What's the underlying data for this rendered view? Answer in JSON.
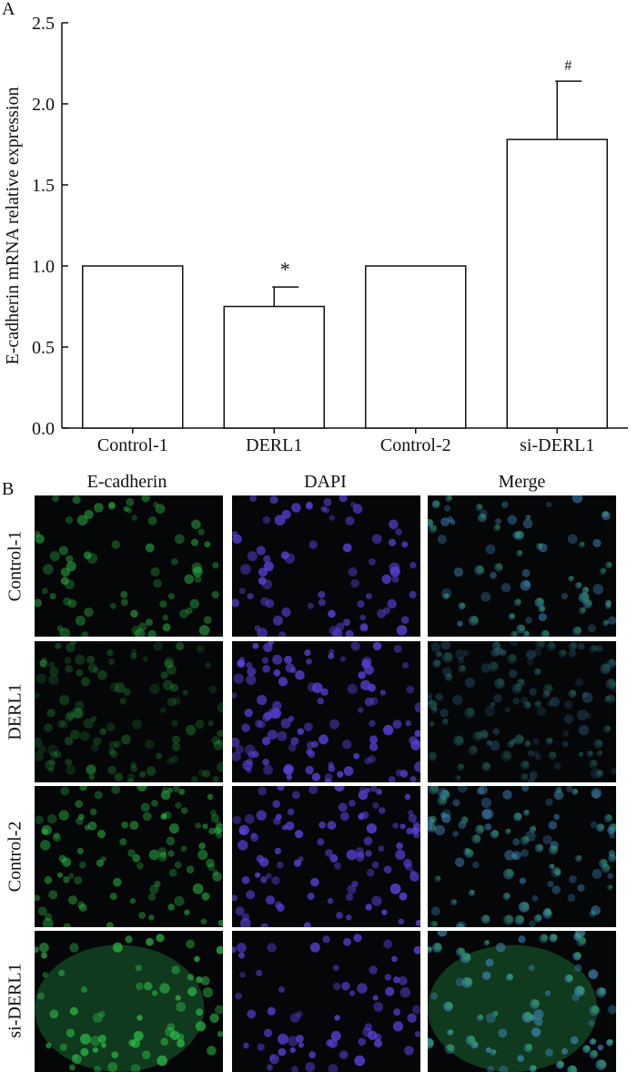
{
  "panel_a": {
    "letter": "A"
  },
  "panel_b": {
    "letter": "B",
    "columns": [
      "E-cadherin",
      "DAPI",
      "Merge"
    ],
    "rows": [
      "Control-1",
      "DERL1",
      "Control-2",
      "si-DERL1"
    ],
    "channel_colors": {
      "E-cadherin": "#2fbf4a",
      "DAPI": "#5a3fd6",
      "Merge": "#3f86b8"
    },
    "row_intensity": [
      0.55,
      0.3,
      0.55,
      0.75
    ],
    "row_cell_density": [
      0.6,
      0.95,
      0.85,
      0.55
    ]
  },
  "chart_data": {
    "type": "bar",
    "title": "",
    "xlabel": "",
    "ylabel": "E-cadherin mRNA relative expression",
    "categories": [
      "Control-1",
      "DERL1",
      "Control-2",
      "si-DERL1"
    ],
    "values": [
      1.0,
      0.75,
      1.0,
      1.78
    ],
    "error": [
      0,
      0.12,
      0,
      0.36
    ],
    "annotations": [
      "",
      "*",
      "",
      "#"
    ],
    "ylim": [
      0,
      2.5
    ],
    "yticks": [
      0.0,
      0.5,
      1.0,
      1.5,
      2.0,
      2.5
    ],
    "ytick_labels": [
      "0.0",
      "0.5",
      "1.0",
      "1.5",
      "2.0",
      "2.5"
    ],
    "bar_fill": "#ffffff",
    "bar_edge": "#111111",
    "grid": false,
    "legend": "none"
  }
}
